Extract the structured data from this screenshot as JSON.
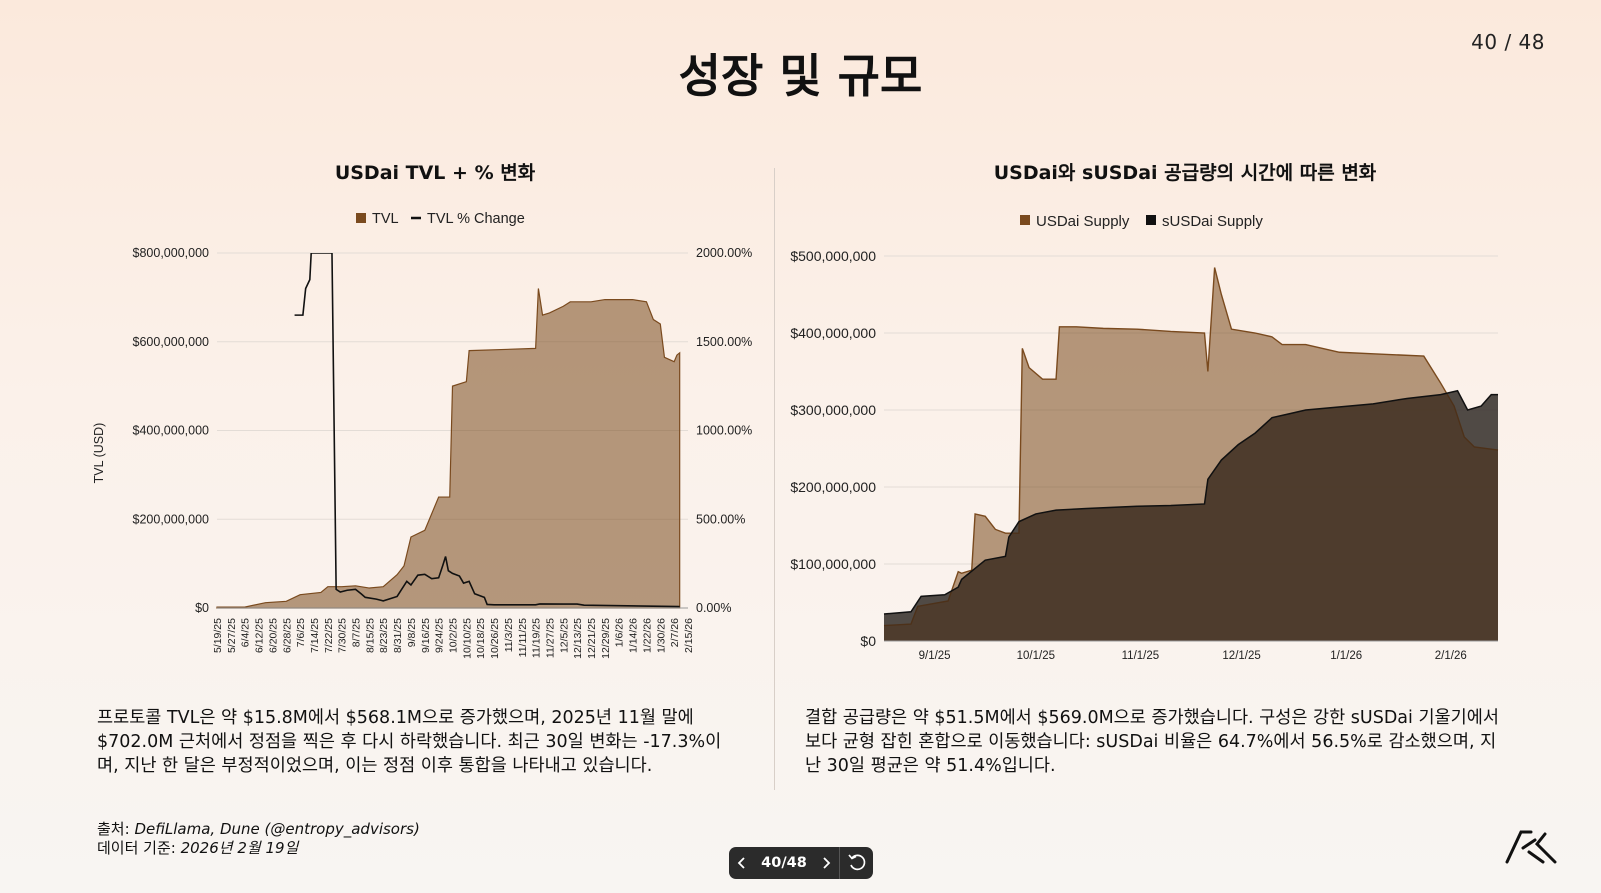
{
  "page_counter": "40 / 48",
  "slide_title": "성장 및 규모",
  "left_text": "프로토콜 TVL은 약 $15.8M에서 $568.1M으로 증가했으며, 2025년 11월 말에 $702.0M 근처에서 정점을 찍은 후 다시 하락했습니다. 최근 30일 변화는 -17.3%이며, 지난 한 달은 부정적이었으며, 이는 정점 이후 통합을 나타내고 있습니다.",
  "right_text": "결합 공급량은 약 $51.5M에서 $569.0M으로 증가했습니다. 구성은 강한 sUSDai 기울기에서 보다 균형 잡힌 혼합으로 이동했습니다: sUSDai 비율은 64.7%에서 56.5%로 감소했으며, 지난 30일 평균은 약 51.4%입니다.",
  "source_prefix": "출처: ",
  "source_value": "DefiLlama, Dune (@entropy_advisors)",
  "date_prefix": "데이터 기준: ",
  "date_value": "2026년 2월 19일",
  "nav": {
    "current": "40/48",
    "prev_icon": "chevron-left-icon",
    "next_icon": "chevron-right-icon",
    "reset_icon": "undo-icon"
  },
  "colors": {
    "tvl": "#7a4a1e",
    "usdai": "#7a4a1e",
    "susdai": "#111111"
  },
  "chart_data": [
    {
      "type": "area",
      "title": "USDai TVL + % 변화",
      "ylabel": "TVL (USD)",
      "y2label": "",
      "legend": [
        "TVL",
        "TVL % Change"
      ],
      "legend_placement": "top",
      "ylim": [
        0,
        800000000
      ],
      "y2lim": [
        0,
        2000
      ],
      "y_ticks": [
        "$0",
        "$200,000,000",
        "$400,000,000",
        "$600,000,000",
        "$800,000,000"
      ],
      "y2_ticks": [
        "0.00%",
        "500.00%",
        "1000.00%",
        "1500.00%",
        "2000.00%"
      ],
      "x_ticks": [
        "5/19/25",
        "5/27/25",
        "6/4/25",
        "6/12/25",
        "6/20/25",
        "6/28/25",
        "7/6/25",
        "7/14/25",
        "7/22/25",
        "7/30/25",
        "8/7/25",
        "8/15/25",
        "8/23/25",
        "8/31/25",
        "9/8/25",
        "9/16/25",
        "9/24/25",
        "10/2/25",
        "10/10/25",
        "10/18/25",
        "10/26/25",
        "11/3/25",
        "11/11/25",
        "11/19/25",
        "11/27/25",
        "12/5/25",
        "12/13/25",
        "12/21/25",
        "12/29/25",
        "1/6/26",
        "1/14/26",
        "1/22/26",
        "1/30/26",
        "2/7/26",
        "2/15/26"
      ],
      "tvl": [
        [
          0,
          2
        ],
        [
          2,
          2
        ],
        [
          3.5,
          12
        ],
        [
          5,
          15
        ],
        [
          6,
          30
        ],
        [
          7.5,
          35
        ],
        [
          8,
          48
        ],
        [
          9,
          48
        ],
        [
          10,
          50
        ],
        [
          11,
          45
        ],
        [
          12,
          48
        ],
        [
          13,
          75
        ],
        [
          13.5,
          95
        ],
        [
          14,
          160
        ],
        [
          15,
          175
        ],
        [
          16,
          250
        ],
        [
          16.8,
          250
        ],
        [
          17,
          500
        ],
        [
          18,
          510
        ],
        [
          18.2,
          580
        ],
        [
          23,
          585
        ],
        [
          23.2,
          720
        ],
        [
          23.5,
          660
        ],
        [
          24,
          665
        ],
        [
          25,
          680
        ],
        [
          25.5,
          690
        ],
        [
          27,
          690
        ],
        [
          28,
          695
        ],
        [
          30,
          695
        ],
        [
          31,
          690
        ],
        [
          31.5,
          650
        ],
        [
          32,
          640
        ],
        [
          32.3,
          565
        ],
        [
          33,
          555
        ],
        [
          33.2,
          570
        ],
        [
          33.4,
          575
        ]
      ],
      "tvl_pct": [
        [
          5.6,
          1650
        ],
        [
          6.2,
          1650
        ],
        [
          6.4,
          1800
        ],
        [
          6.7,
          1850
        ],
        [
          6.8,
          2000
        ],
        [
          8.3,
          2000
        ],
        [
          8.6,
          105
        ],
        [
          8.9,
          90
        ],
        [
          9.4,
          100
        ],
        [
          10,
          105
        ],
        [
          10.4,
          80
        ],
        [
          10.7,
          60
        ],
        [
          11.5,
          50
        ],
        [
          12,
          40
        ],
        [
          13,
          65
        ],
        [
          13.7,
          150
        ],
        [
          14,
          130
        ],
        [
          14.5,
          185
        ],
        [
          15,
          190
        ],
        [
          15.5,
          165
        ],
        [
          16,
          170
        ],
        [
          16.3,
          240
        ],
        [
          16.5,
          290
        ],
        [
          16.7,
          210
        ],
        [
          17,
          195
        ],
        [
          17.5,
          180
        ],
        [
          17.8,
          140
        ],
        [
          18.2,
          150
        ],
        [
          18.6,
          80
        ],
        [
          19.3,
          60
        ],
        [
          19.5,
          20
        ],
        [
          20,
          18
        ],
        [
          23,
          18
        ],
        [
          23.3,
          23
        ],
        [
          25,
          22
        ],
        [
          26,
          22
        ],
        [
          26.5,
          16
        ],
        [
          33.4,
          8
        ]
      ]
    },
    {
      "type": "area",
      "title": "USDai와 sUSDai 공급량의 시간에 따른 변화",
      "legend": [
        "USDai Supply",
        "sUSDai Supply"
      ],
      "legend_placement": "top",
      "ylim": [
        0,
        500000000
      ],
      "y_ticks": [
        "$0",
        "$100,000,000",
        "$200,000,000",
        "$300,000,000",
        "$400,000,000",
        "$500,000,000"
      ],
      "x_ticks": [
        "9/1/25",
        "10/1/25",
        "11/1/25",
        "12/1/25",
        "1/1/26",
        "2/1/26"
      ],
      "x_range_days": [
        -15,
        167
      ],
      "usdai": [
        [
          -15,
          20
        ],
        [
          -7,
          22
        ],
        [
          -5,
          45
        ],
        [
          4,
          52
        ],
        [
          7,
          90
        ],
        [
          8,
          88
        ],
        [
          11,
          92
        ],
        [
          12,
          165
        ],
        [
          15,
          162
        ],
        [
          18,
          145
        ],
        [
          21,
          140
        ],
        [
          25,
          140
        ],
        [
          26,
          380
        ],
        [
          28,
          355
        ],
        [
          32,
          340
        ],
        [
          36,
          340
        ],
        [
          37,
          408
        ],
        [
          42,
          408
        ],
        [
          50,
          406
        ],
        [
          60,
          405
        ],
        [
          70,
          402
        ],
        [
          80,
          400
        ],
        [
          81,
          350
        ],
        [
          83,
          485
        ],
        [
          85,
          450
        ],
        [
          88,
          405
        ],
        [
          95,
          400
        ],
        [
          100,
          395
        ],
        [
          103,
          385
        ],
        [
          110,
          385
        ],
        [
          115,
          380
        ],
        [
          120,
          375
        ],
        [
          130,
          373
        ],
        [
          145,
          370
        ],
        [
          150,
          335
        ],
        [
          154,
          305
        ],
        [
          157,
          265
        ],
        [
          160,
          252
        ],
        [
          167,
          248
        ]
      ],
      "susdai": [
        [
          -15,
          35
        ],
        [
          -7,
          38
        ],
        [
          -4,
          58
        ],
        [
          3,
          60
        ],
        [
          7,
          70
        ],
        [
          8,
          80
        ],
        [
          15,
          105
        ],
        [
          21,
          110
        ],
        [
          22,
          135
        ],
        [
          25,
          155
        ],
        [
          30,
          165
        ],
        [
          36,
          170
        ],
        [
          45,
          172
        ],
        [
          60,
          175
        ],
        [
          70,
          176
        ],
        [
          80,
          178
        ],
        [
          81,
          210
        ],
        [
          85,
          235
        ],
        [
          90,
          255
        ],
        [
          95,
          270
        ],
        [
          100,
          290
        ],
        [
          105,
          295
        ],
        [
          110,
          300
        ],
        [
          130,
          308
        ],
        [
          140,
          315
        ],
        [
          150,
          320
        ],
        [
          155,
          325
        ],
        [
          158,
          300
        ],
        [
          162,
          305
        ],
        [
          165,
          320
        ],
        [
          167,
          320
        ]
      ]
    }
  ]
}
